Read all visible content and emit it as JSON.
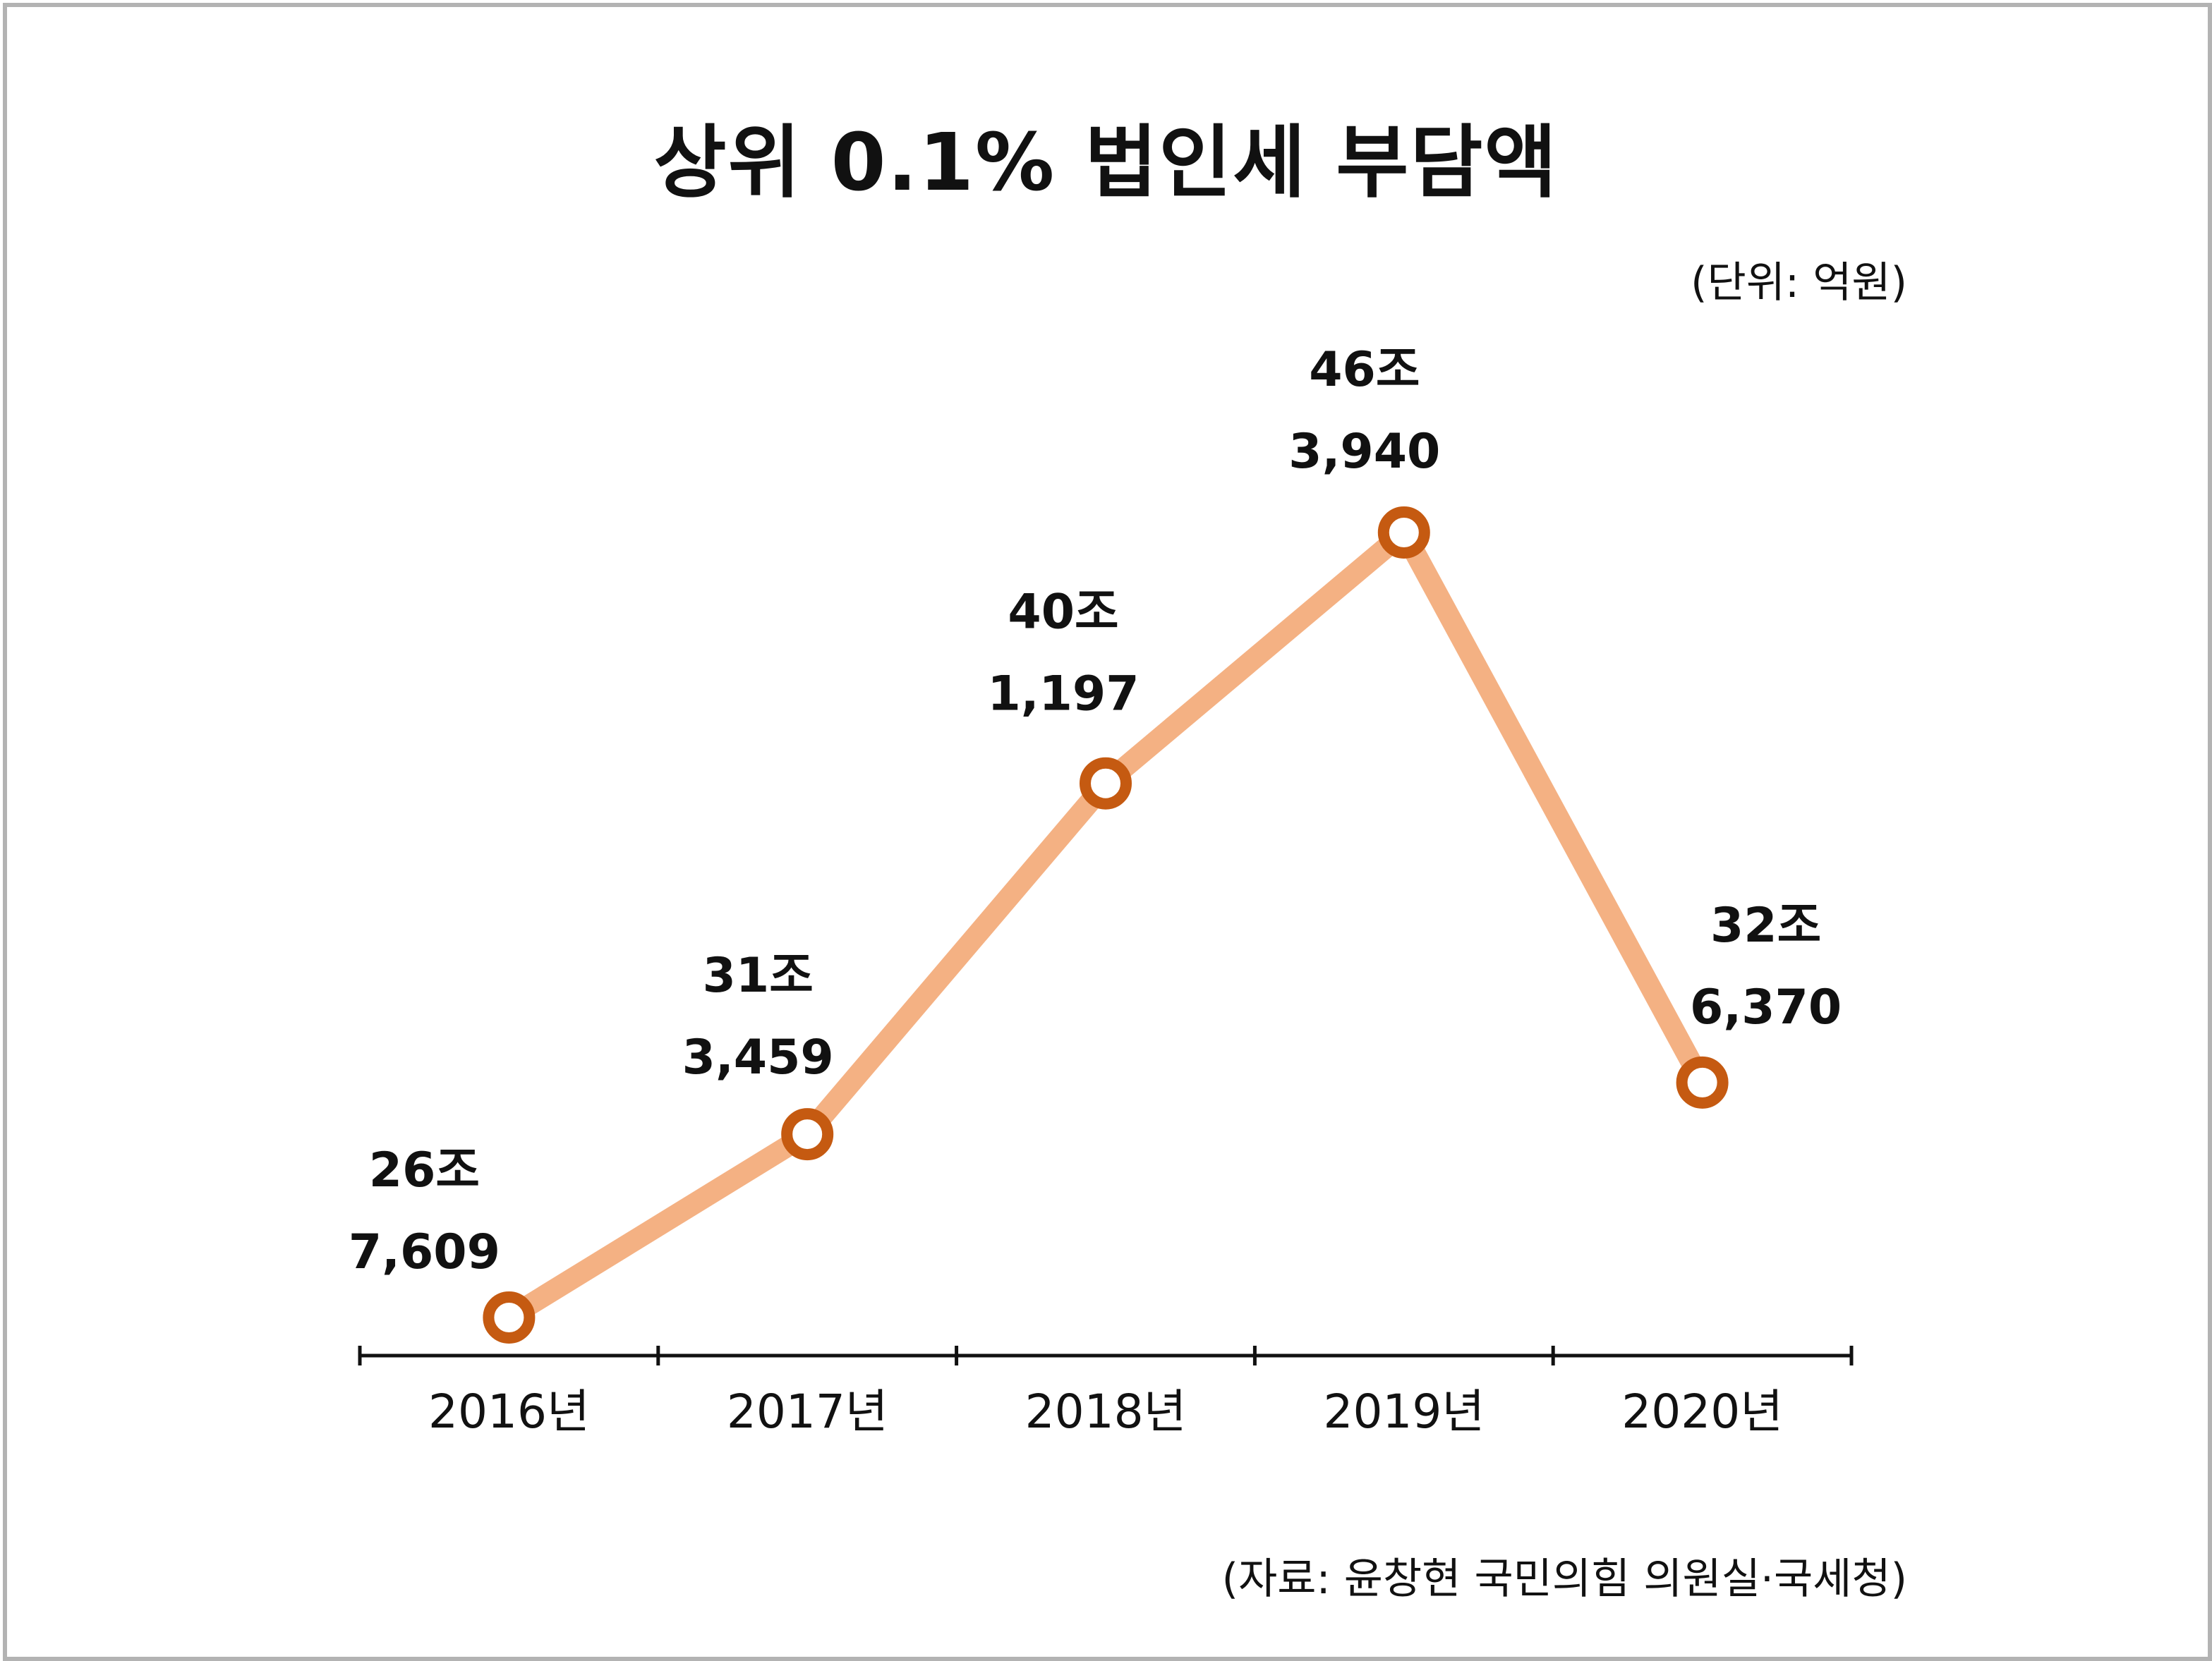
{
  "title": "상위 0.1% 법인세 부담액",
  "unit": "(단위: 억원)",
  "source": "(자료: 윤창현 국민의힘 의원실·국세청)",
  "colors": {
    "line": "#F4B183",
    "marker_stroke": "#C55A11",
    "marker_fill": "#FFFFFF",
    "axis": "#111111",
    "frame": "#B3B3B3"
  },
  "chart_data": {
    "type": "line",
    "title": "상위 0.1% 법인세 부담액",
    "xlabel": "",
    "ylabel": "",
    "categories": [
      "2016년",
      "2017년",
      "2018년",
      "2019년",
      "2020년"
    ],
    "values": [
      267609,
      313459,
      401197,
      463940,
      326370
    ],
    "data_labels": [
      [
        "26조",
        "7,609"
      ],
      [
        "31조",
        "3,459"
      ],
      [
        "40조",
        "1,197"
      ],
      [
        "46조",
        "3,940"
      ],
      [
        "32조",
        "6,370"
      ]
    ],
    "grid": false,
    "legend": "none"
  }
}
